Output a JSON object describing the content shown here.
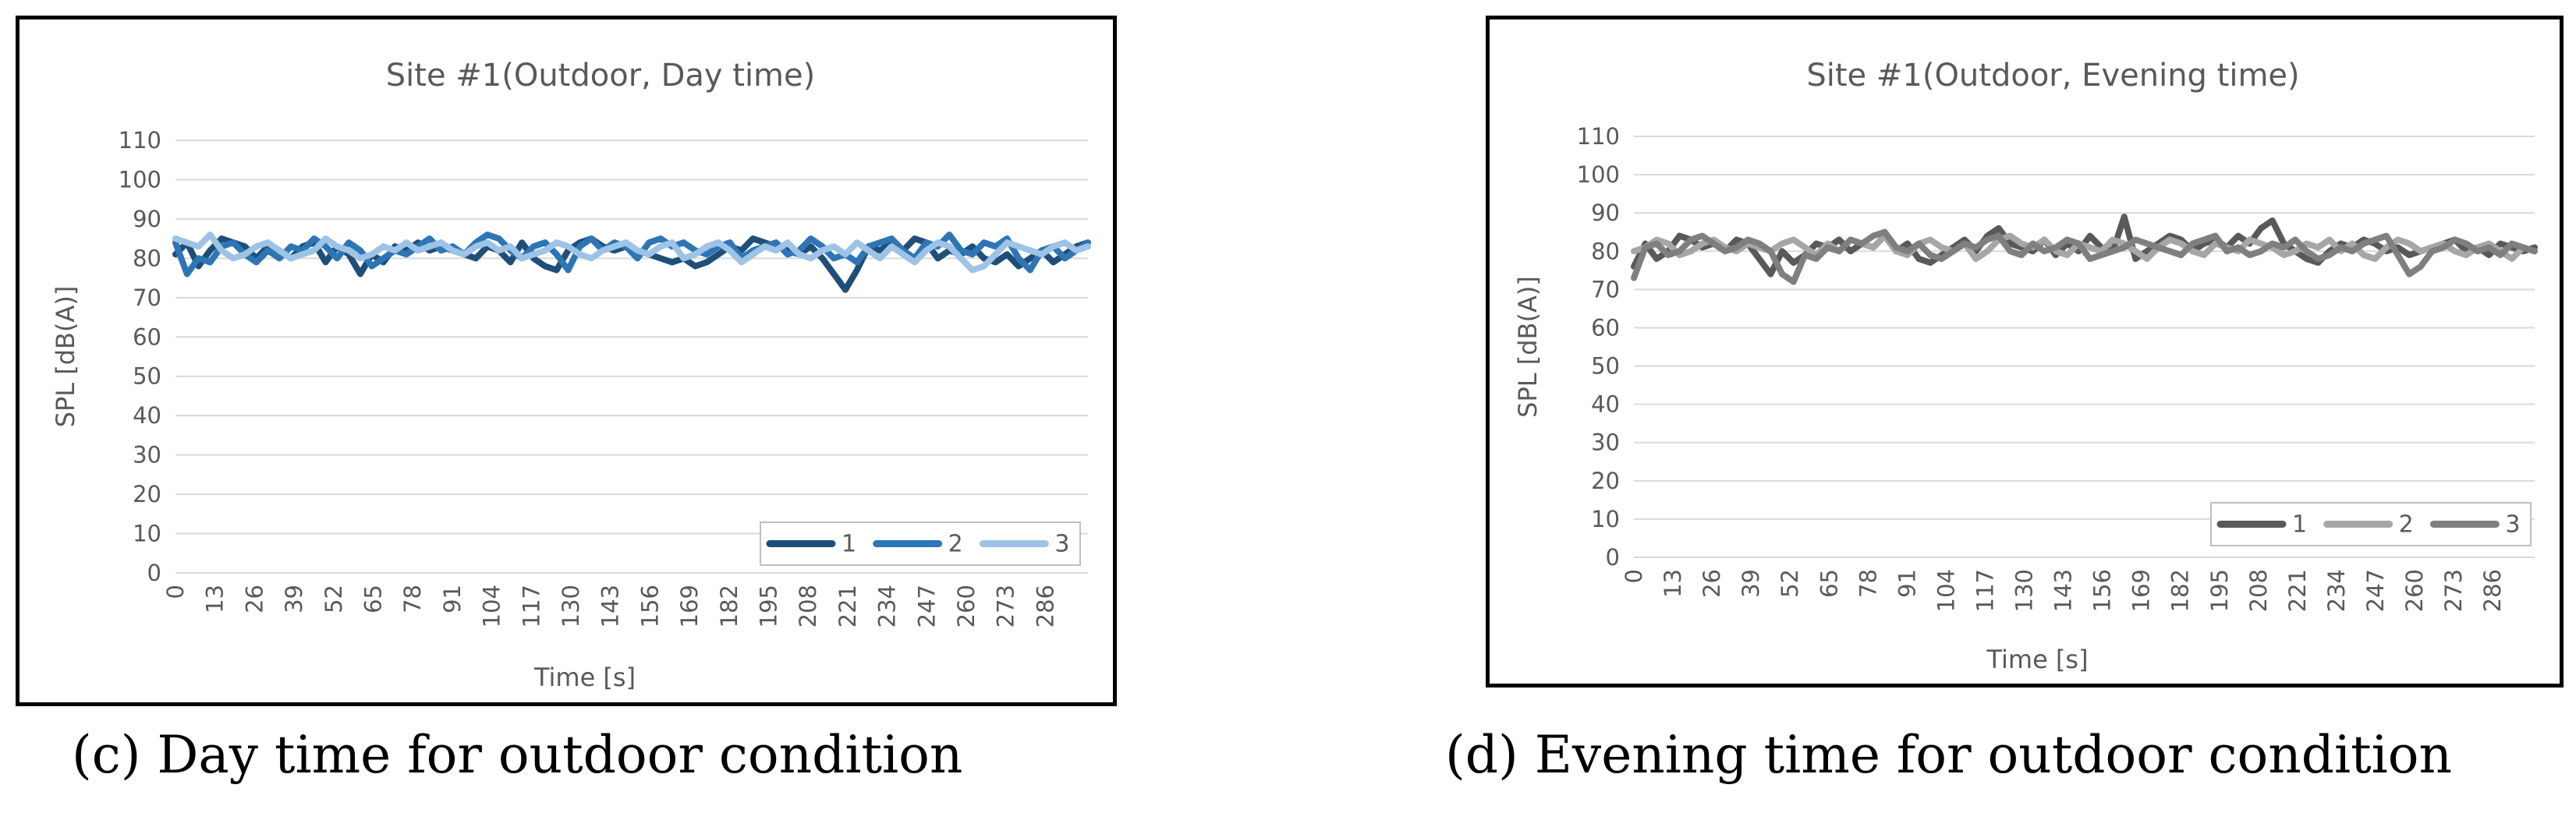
{
  "captions": {
    "left": "(c) Day time for outdoor condition",
    "right": "(d) Evening time for outdoor condition"
  },
  "chart_data": [
    {
      "type": "line",
      "title": "Site #1(Outdoor, Day time)",
      "xlabel": "Time [s]",
      "ylabel": "SPL [dB(A)]",
      "ylim": [
        0,
        110
      ],
      "yticks": [
        "0",
        "10",
        "20",
        "30",
        "40",
        "50",
        "60",
        "70",
        "80",
        "90",
        "100",
        "110"
      ],
      "xticks": [
        "0",
        "13",
        "26",
        "39",
        "52",
        "65",
        "78",
        "91",
        "104",
        "117",
        "130",
        "143",
        "156",
        "169",
        "182",
        "195",
        "208",
        "221",
        "234",
        "247",
        "260",
        "273",
        "286"
      ],
      "grid": true,
      "legend_position": "bottom-right",
      "x_interval_s": 13,
      "series": [
        {
          "name": "1",
          "color": "#1f4e79",
          "values": [
            81,
            84,
            78,
            82,
            85,
            84,
            83,
            80,
            83,
            82,
            80,
            83,
            84,
            79,
            83,
            81,
            76,
            81,
            79,
            83,
            82,
            84,
            82,
            83,
            82,
            81,
            80,
            83,
            82,
            79,
            84,
            80,
            78,
            77,
            82,
            84,
            85,
            83,
            82,
            83,
            82,
            81,
            80,
            79,
            80,
            78,
            79,
            81,
            83,
            82,
            85,
            84,
            83,
            82,
            81,
            83,
            80,
            76,
            72,
            77,
            83,
            82,
            84,
            82,
            85,
            84,
            80,
            82,
            81,
            83,
            80,
            79,
            81,
            78,
            80,
            82,
            79,
            81,
            83,
            84
          ]
        },
        {
          "name": "2",
          "color": "#2e75b6",
          "values": [
            84,
            76,
            80,
            79,
            83,
            84,
            81,
            79,
            82,
            80,
            83,
            82,
            85,
            83,
            80,
            84,
            82,
            78,
            80,
            82,
            81,
            83,
            85,
            82,
            83,
            81,
            84,
            86,
            85,
            82,
            80,
            83,
            84,
            81,
            77,
            83,
            85,
            82,
            84,
            83,
            80,
            84,
            85,
            83,
            84,
            82,
            81,
            83,
            84,
            80,
            82,
            83,
            84,
            81,
            82,
            85,
            83,
            80,
            81,
            79,
            83,
            84,
            85,
            82,
            80,
            84,
            83,
            86,
            82,
            81,
            84,
            83,
            85,
            80,
            77,
            82,
            83,
            80,
            82,
            84
          ]
        },
        {
          "name": "3",
          "color": "#9dc3e6",
          "values": [
            85,
            84,
            83,
            86,
            82,
            80,
            81,
            83,
            84,
            82,
            80,
            81,
            82,
            85,
            83,
            82,
            80,
            81,
            83,
            82,
            84,
            82,
            83,
            84,
            82,
            81,
            83,
            84,
            82,
            83,
            80,
            81,
            82,
            84,
            83,
            81,
            80,
            82,
            83,
            84,
            82,
            81,
            83,
            84,
            80,
            81,
            83,
            84,
            82,
            79,
            81,
            83,
            82,
            84,
            81,
            80,
            82,
            83,
            81,
            84,
            82,
            80,
            83,
            81,
            79,
            82,
            84,
            83,
            80,
            77,
            78,
            81,
            84,
            83,
            82,
            81,
            83,
            84,
            82,
            83
          ]
        }
      ]
    },
    {
      "type": "line",
      "title": "Site #1(Outdoor, Evening time)",
      "xlabel": "Time [s]",
      "ylabel": "SPL [dB(A)]",
      "ylim": [
        0,
        110
      ],
      "yticks": [
        "0",
        "10",
        "20",
        "30",
        "40",
        "50",
        "60",
        "70",
        "80",
        "90",
        "100",
        "110"
      ],
      "xticks": [
        "0",
        "13",
        "26",
        "39",
        "52",
        "65",
        "78",
        "91",
        "104",
        "117",
        "130",
        "143",
        "156",
        "169",
        "182",
        "195",
        "208",
        "221",
        "234",
        "247",
        "260",
        "273",
        "286"
      ],
      "grid": true,
      "legend_position": "bottom-right",
      "x_interval_s": 13,
      "series": [
        {
          "name": "1",
          "color": "#595959",
          "values": [
            76,
            82,
            78,
            80,
            84,
            83,
            81,
            82,
            80,
            83,
            82,
            78,
            74,
            80,
            77,
            79,
            82,
            81,
            83,
            80,
            82,
            81,
            84,
            80,
            82,
            78,
            77,
            79,
            81,
            83,
            80,
            84,
            86,
            82,
            81,
            80,
            83,
            79,
            82,
            80,
            84,
            81,
            80,
            89,
            78,
            80,
            82,
            84,
            83,
            80,
            82,
            83,
            81,
            84,
            82,
            86,
            88,
            82,
            80,
            78,
            77,
            80,
            82,
            81,
            83,
            82,
            80,
            81,
            79,
            80,
            81,
            82,
            83,
            80,
            81,
            79,
            82,
            81,
            80,
            81
          ]
        },
        {
          "name": "2",
          "color": "#a6a6a6",
          "values": [
            80,
            81,
            83,
            82,
            79,
            80,
            82,
            83,
            81,
            80,
            82,
            81,
            80,
            82,
            83,
            81,
            79,
            82,
            80,
            83,
            82,
            81,
            84,
            80,
            79,
            82,
            83,
            81,
            80,
            82,
            78,
            80,
            83,
            84,
            82,
            81,
            83,
            80,
            79,
            82,
            81,
            80,
            83,
            82,
            80,
            78,
            81,
            83,
            82,
            80,
            79,
            82,
            81,
            80,
            83,
            82,
            81,
            79,
            80,
            82,
            81,
            83,
            80,
            82,
            79,
            78,
            81,
            83,
            82,
            80,
            81,
            82,
            80,
            79,
            81,
            82,
            80,
            78,
            81,
            80
          ]
        },
        {
          "name": "3",
          "color": "#7f7f7f",
          "values": [
            73,
            81,
            82,
            79,
            80,
            83,
            84,
            82,
            80,
            81,
            83,
            82,
            80,
            74,
            72,
            79,
            78,
            81,
            80,
            83,
            82,
            84,
            85,
            81,
            80,
            82,
            79,
            78,
            80,
            82,
            81,
            83,
            84,
            80,
            79,
            82,
            80,
            81,
            83,
            82,
            78,
            79,
            80,
            81,
            83,
            82,
            81,
            80,
            79,
            82,
            83,
            84,
            80,
            81,
            79,
            80,
            82,
            81,
            83,
            80,
            78,
            79,
            81,
            80,
            82,
            83,
            84,
            79,
            74,
            76,
            80,
            81,
            83,
            82,
            80,
            81,
            79,
            82,
            81,
            80
          ]
        }
      ]
    }
  ]
}
